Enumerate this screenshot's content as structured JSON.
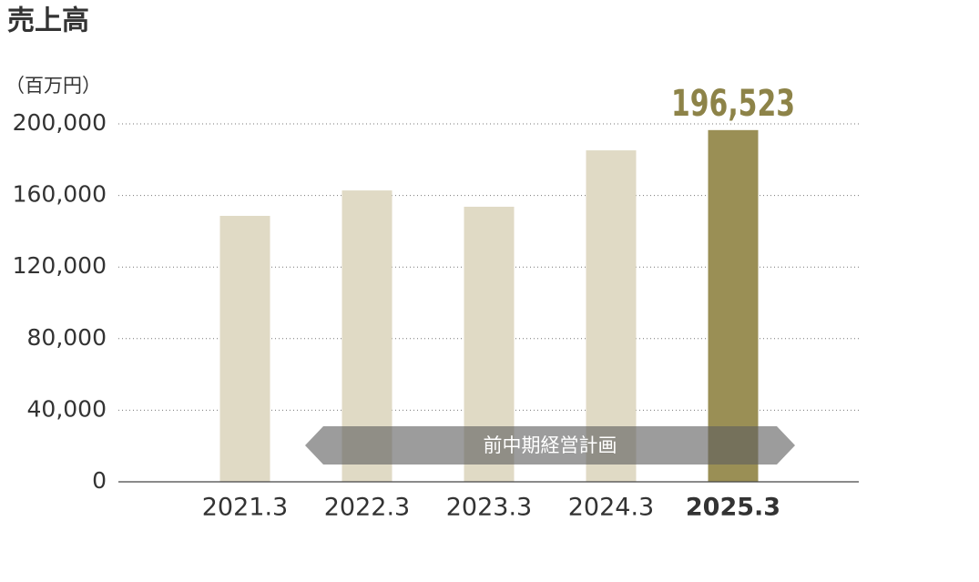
{
  "chart_data": {
    "type": "bar",
    "title": "売上高",
    "y_label": "（百万円）",
    "categories": [
      "2021.3",
      "2022.3",
      "2023.3",
      "2024.3",
      "2025.3"
    ],
    "values": [
      148600,
      162800,
      153700,
      185200,
      196523
    ],
    "value_labels": [
      null,
      null,
      null,
      null,
      "196,523"
    ],
    "colors": [
      "#e0dac5",
      "#e0dac5",
      "#e0dac5",
      "#e0dac5",
      "#9a8f55"
    ],
    "label_color": "#8d8348",
    "annotation": "前中期経営計画",
    "ylim": [
      0,
      200000
    ],
    "yticks": [
      0,
      {
        "value": 40000,
        "label": "40,000"
      },
      {
        "value": 80000,
        "label": "80,000"
      },
      {
        "value": 120000,
        "label": "120,000"
      },
      {
        "value": 160000,
        "label": "160,000"
      },
      {
        "value": 200000,
        "label": "200,000"
      }
    ],
    "grid": true
  }
}
